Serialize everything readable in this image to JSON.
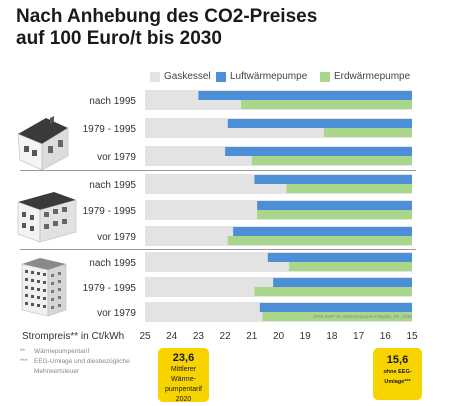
{
  "title_line1": "Nach Anhebung des CO2-Preises",
  "title_line2": "auf 100 Euro/t bis 2030",
  "source": "©FIE BWP-01 Wärmepumpen-Faltplan_RF_3030",
  "x_axis_label": "Strompreis** in Ct/kWh",
  "footnotes": [
    {
      "mark": "**",
      "text": "Wärmepumpentarif"
    },
    {
      "mark": "***",
      "text": "EEG-Umlage und diesbezügliche"
    },
    {
      "mark": "",
      "text": "Mehrwertsteuer"
    }
  ],
  "callout_1": {
    "value": "23,6",
    "label_lines": [
      "Mittlerer",
      "Wärme-",
      "pumpentarif",
      "2020"
    ]
  },
  "callout_2": {
    "value": "15,6",
    "label_lines": [
      "ohne EEG-",
      "Umlage***"
    ]
  },
  "colors": {
    "gaskessel": "#e3e3e3",
    "luftwaermepumpe": "#4d8fd6",
    "erdwaermepumpe": "#a8d68a",
    "callout": "#f7d300",
    "separator": "#9a9a9a"
  },
  "icons": [
    "single-family-house-icon",
    "multi-family-house-icon",
    "apartment-tower-icon"
  ],
  "chart_data": {
    "type": "bar",
    "orientation": "horizontal",
    "x_reversed": true,
    "xlabel": "Strompreis** in Ct/kWh",
    "xlim": [
      25,
      15
    ],
    "x_ticks": [
      25,
      24,
      23,
      22,
      21,
      20,
      19,
      18,
      17,
      16,
      15
    ],
    "legend_position": "top",
    "groups": [
      {
        "name": "single-family-house",
        "categories": [
          "nach 1995",
          "1979 - 1995",
          "vor 1979"
        ]
      },
      {
        "name": "multi-family-house",
        "categories": [
          "nach 1995",
          "1979 - 1995",
          "vor 1979"
        ]
      },
      {
        "name": "apartment-tower",
        "categories": [
          "nach 1995",
          "1979 - 1995",
          "vor 1979"
        ]
      }
    ],
    "series": [
      {
        "name": "Gaskessel",
        "values": [
          25,
          25,
          25,
          25,
          25,
          25,
          25,
          25,
          25
        ]
      },
      {
        "name": "Luftwärmepumpe",
        "values": [
          23.0,
          21.9,
          22.0,
          20.9,
          20.8,
          21.7,
          20.4,
          20.2,
          20.7
        ]
      },
      {
        "name": "Erdwärmepumpe",
        "values": [
          21.4,
          18.3,
          21.0,
          19.7,
          20.8,
          21.9,
          19.6,
          20.9,
          20.6
        ]
      }
    ]
  }
}
